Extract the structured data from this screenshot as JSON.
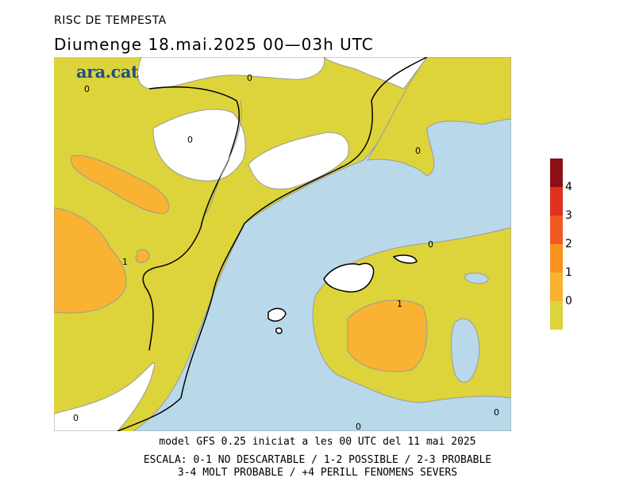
{
  "header": {
    "title": "RISC DE TEMPESTA",
    "subtitle": "Diumenge  18.mai.2025 00—03h UTC"
  },
  "logo": {
    "text": "ara.cat"
  },
  "map": {
    "contour_labels": [
      "0",
      "0",
      "0",
      "0",
      "0",
      "1",
      "1",
      "0",
      "0",
      "0"
    ],
    "colors": {
      "sea": "#b9d8ea",
      "level_0_1": "#dcd43a",
      "level_1_2": "#f9b232",
      "no_data_land": "#ffffff",
      "border": "#000000",
      "contour": "#9a9a9a"
    }
  },
  "scale": {
    "labels": [
      "4",
      "3",
      "2",
      "1",
      "0"
    ],
    "colors": [
      "#8b1016",
      "#e0301e",
      "#f05a22",
      "#f7921e",
      "#f9b232",
      "#dcd43a"
    ]
  },
  "footer": {
    "line1": "model GFS 0.25 iniciat a les 00 UTC del 11 mai 2025",
    "line2": "ESCALA: 0-1 NO DESCARTABLE / 1-2 POSSIBLE / 2-3 PROBABLE",
    "line3": "3-4 MOLT PROBABLE / +4 PERILL FENOMENS SEVERS"
  }
}
